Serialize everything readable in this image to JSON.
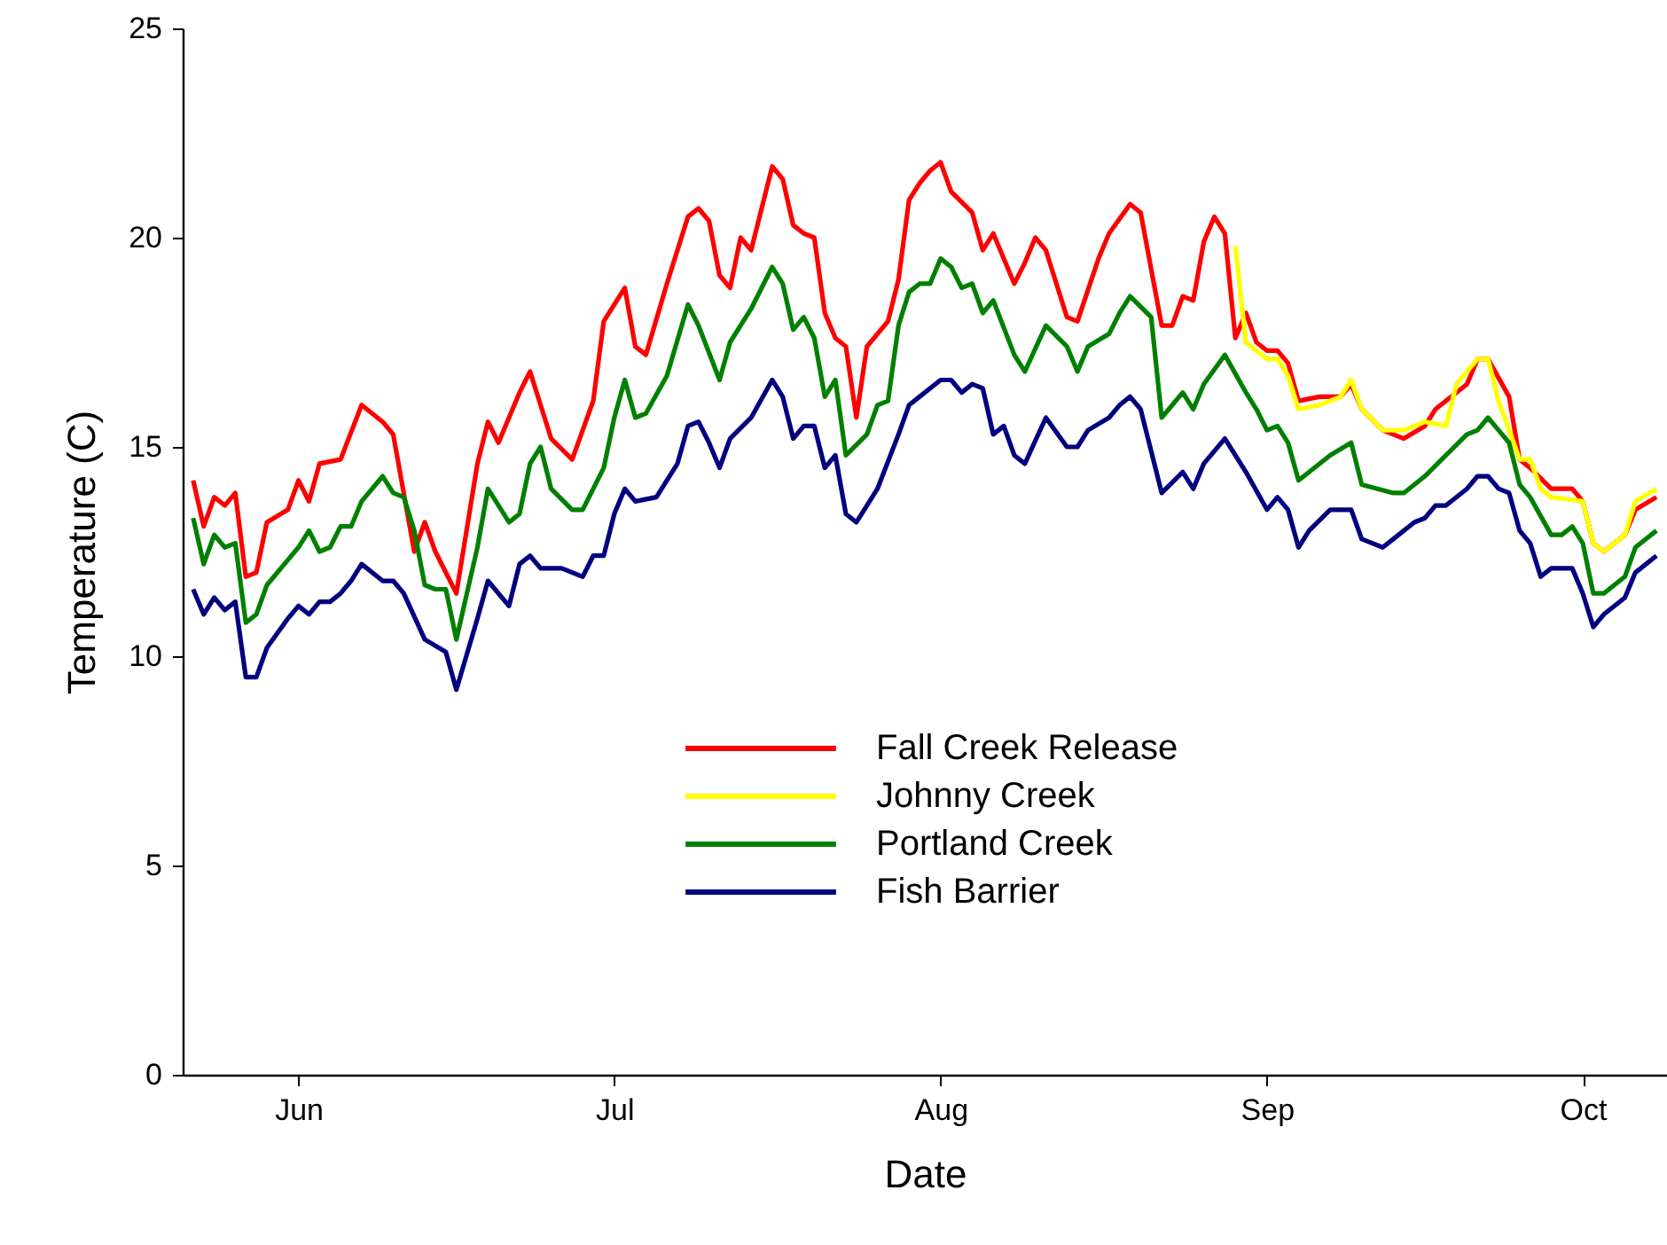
{
  "chart_data": {
    "type": "line",
    "xlabel": "Date",
    "ylabel": "Temperature (C)",
    "xlim": [
      "--05-21",
      "--10-09"
    ],
    "ylim": [
      0,
      25
    ],
    "yticks": [
      0,
      5,
      10,
      15,
      20,
      25
    ],
    "xticks": [
      {
        "value": "--06-01",
        "label": "Jun"
      },
      {
        "value": "--07-01",
        "label": "Jul"
      },
      {
        "value": "--08-01",
        "label": "Aug"
      },
      {
        "value": "--09-01",
        "label": "Sep"
      },
      {
        "value": "--10-01",
        "label": "Oct"
      }
    ],
    "legend": "bottom",
    "series": [
      {
        "name": "Fall Creek Release",
        "color": "#ff0000",
        "x": [
          "--05-22",
          "--05-23",
          "--05-24",
          "--05-25",
          "--05-26",
          "--05-27",
          "--05-28",
          "--05-29",
          "--05-31",
          "--06-01",
          "--06-02",
          "--06-03",
          "--06-05",
          "--06-07",
          "--06-09",
          "--06-10",
          "--06-11",
          "--06-12",
          "--06-13",
          "--06-14",
          "--06-16",
          "--06-18",
          "--06-19",
          "--06-20",
          "--06-22",
          "--06-23",
          "--06-25",
          "--06-27",
          "--06-29",
          "--06-30",
          "--07-02",
          "--07-03",
          "--07-04",
          "--07-06",
          "--07-08",
          "--07-09",
          "--07-10",
          "--07-11",
          "--07-12",
          "--07-13",
          "--07-14",
          "--07-16",
          "--07-17",
          "--07-18",
          "--07-19",
          "--07-20",
          "--07-21",
          "--07-22",
          "--07-23",
          "--07-24",
          "--07-25",
          "--07-27",
          "--07-28",
          "--07-29",
          "--07-30",
          "--07-31",
          "--08-01",
          "--08-02",
          "--08-04",
          "--08-05",
          "--08-06",
          "--08-08",
          "--08-09",
          "--08-10",
          "--08-11",
          "--08-13",
          "--08-14",
          "--08-16",
          "--08-17",
          "--08-19",
          "--08-20",
          "--08-22",
          "--08-23",
          "--08-24",
          "--08-25",
          "--08-26",
          "--08-27",
          "--08-28",
          "--08-29",
          "--08-30",
          "--08-31",
          "--09-01",
          "--09-02",
          "--09-03",
          "--09-04",
          "--09-06",
          "--09-08",
          "--09-09",
          "--09-10",
          "--09-12",
          "--09-14",
          "--09-16",
          "--09-17",
          "--09-20",
          "--09-21",
          "--09-22",
          "--09-24",
          "--09-25",
          "--09-26",
          "--09-28",
          "--09-30",
          "--10-01",
          "--10-02",
          "--10-03",
          "--10-05",
          "--10-06",
          "--10-08"
        ],
        "values": [
          14.2,
          13.1,
          13.8,
          13.6,
          13.9,
          11.9,
          12.0,
          13.2,
          13.5,
          14.2,
          13.7,
          14.6,
          14.7,
          16.0,
          15.6,
          15.3,
          13.9,
          12.5,
          13.2,
          12.5,
          11.5,
          14.6,
          15.6,
          15.1,
          16.3,
          16.8,
          15.2,
          14.7,
          16.1,
          18.0,
          18.8,
          17.4,
          17.2,
          18.9,
          20.5,
          20.7,
          20.4,
          19.1,
          18.8,
          20.0,
          19.7,
          21.7,
          21.4,
          20.3,
          20.1,
          20.0,
          18.2,
          17.6,
          17.4,
          15.7,
          17.4,
          18.0,
          19.0,
          20.9,
          21.3,
          21.6,
          21.8,
          21.1,
          20.6,
          19.7,
          20.1,
          18.9,
          19.4,
          20.0,
          19.7,
          18.1,
          18.0,
          19.5,
          20.1,
          20.8,
          20.6,
          17.9,
          17.9,
          18.6,
          18.5,
          19.9,
          20.5,
          20.1,
          17.6,
          18.2,
          17.5,
          17.3,
          17.3,
          17.0,
          16.1,
          16.2,
          16.2,
          16.5,
          15.9,
          15.4,
          15.2,
          15.5,
          15.9,
          16.5,
          17.1,
          17.1,
          16.2,
          14.7,
          14.5,
          14.0,
          14.0,
          13.7,
          12.7,
          12.5,
          12.9,
          13.5,
          13.8
        ]
      },
      {
        "name": "Johnny Creek",
        "color": "#ffff00",
        "x": [
          "--08-29",
          "--08-30",
          "--09-01",
          "--09-02",
          "--09-03",
          "--09-04",
          "--09-06",
          "--09-08",
          "--09-09",
          "--09-10",
          "--09-12",
          "--09-14",
          "--09-16",
          "--09-18",
          "--09-19",
          "--09-21",
          "--09-22",
          "--09-23",
          "--09-25",
          "--09-26",
          "--09-27",
          "--09-28",
          "--10-01",
          "--10-02",
          "--10-03",
          "--10-05",
          "--10-06",
          "--10-08"
        ],
        "values": [
          19.8,
          17.5,
          17.1,
          17.1,
          16.7,
          15.9,
          16.0,
          16.2,
          16.6,
          15.9,
          15.4,
          15.4,
          15.6,
          15.5,
          16.5,
          17.1,
          17.1,
          16.1,
          14.7,
          14.7,
          14.0,
          13.8,
          13.7,
          12.7,
          12.5,
          12.9,
          13.7,
          14.0
        ]
      },
      {
        "name": "Portland Creek",
        "color": "#008000",
        "x": [
          "--05-22",
          "--05-23",
          "--05-24",
          "--05-25",
          "--05-26",
          "--05-27",
          "--05-28",
          "--05-29",
          "--05-31",
          "--06-01",
          "--06-02",
          "--06-03",
          "--06-04",
          "--06-05",
          "--06-06",
          "--06-07",
          "--06-09",
          "--06-10",
          "--06-11",
          "--06-12",
          "--06-13",
          "--06-14",
          "--06-15",
          "--06-16",
          "--06-18",
          "--06-19",
          "--06-21",
          "--06-22",
          "--06-23",
          "--06-24",
          "--06-25",
          "--06-27",
          "--06-28",
          "--06-30",
          "--07-01",
          "--07-02",
          "--07-03",
          "--07-04",
          "--07-06",
          "--07-08",
          "--07-09",
          "--07-11",
          "--07-12",
          "--07-14",
          "--07-16",
          "--07-17",
          "--07-18",
          "--07-19",
          "--07-20",
          "--07-21",
          "--07-22",
          "--07-23",
          "--07-25",
          "--07-26",
          "--07-27",
          "--07-28",
          "--07-29",
          "--07-30",
          "--07-31",
          "--08-01",
          "--08-02",
          "--08-03",
          "--08-04",
          "--08-05",
          "--08-06",
          "--08-08",
          "--08-09",
          "--08-11",
          "--08-13",
          "--08-14",
          "--08-15",
          "--08-17",
          "--08-18",
          "--08-19",
          "--08-21",
          "--08-22",
          "--08-24",
          "--08-25",
          "--08-26",
          "--08-28",
          "--08-30",
          "--08-31",
          "--09-01",
          "--09-02",
          "--09-03",
          "--09-04",
          "--09-07",
          "--09-09",
          "--09-10",
          "--09-13",
          "--09-14",
          "--09-16",
          "--09-18",
          "--09-20",
          "--09-21",
          "--09-22",
          "--09-23",
          "--09-24",
          "--09-25",
          "--09-26",
          "--09-28",
          "--09-29",
          "--09-30",
          "--10-01",
          "--10-02",
          "--10-03",
          "--10-05",
          "--10-06",
          "--10-08"
        ],
        "values": [
          13.3,
          12.2,
          12.9,
          12.6,
          12.7,
          10.8,
          11.0,
          11.7,
          12.3,
          12.6,
          13.0,
          12.5,
          12.6,
          13.1,
          13.1,
          13.7,
          14.3,
          13.9,
          13.8,
          13.0,
          11.7,
          11.6,
          11.6,
          10.4,
          12.6,
          14.0,
          13.2,
          13.4,
          14.6,
          15.0,
          14.0,
          13.5,
          13.5,
          14.5,
          15.7,
          16.6,
          15.7,
          15.8,
          16.7,
          18.4,
          17.9,
          16.6,
          17.5,
          18.3,
          19.3,
          18.9,
          17.8,
          18.1,
          17.6,
          16.2,
          16.6,
          14.8,
          15.3,
          16.0,
          16.1,
          17.9,
          18.7,
          18.9,
          18.9,
          19.5,
          19.3,
          18.8,
          18.9,
          18.2,
          18.5,
          17.2,
          16.8,
          17.9,
          17.4,
          16.8,
          17.4,
          17.7,
          18.2,
          18.6,
          18.1,
          15.7,
          16.3,
          15.9,
          16.5,
          17.2,
          16.3,
          15.9,
          15.4,
          15.5,
          15.1,
          14.2,
          14.8,
          15.1,
          14.1,
          13.9,
          13.9,
          14.3,
          14.8,
          15.3,
          15.4,
          15.7,
          15.4,
          15.1,
          14.1,
          13.8,
          12.9,
          12.9,
          13.1,
          12.7,
          11.5,
          11.5,
          11.9,
          12.6,
          13.0
        ]
      },
      {
        "name": "Fish Barrier",
        "color": "#000080",
        "x": [
          "--05-22",
          "--05-23",
          "--05-24",
          "--05-25",
          "--05-26",
          "--05-27",
          "--05-28",
          "--05-29",
          "--05-31",
          "--06-01",
          "--06-02",
          "--06-03",
          "--06-04",
          "--06-05",
          "--06-06",
          "--06-07",
          "--06-09",
          "--06-10",
          "--06-11",
          "--06-13",
          "--06-15",
          "--06-16",
          "--06-18",
          "--06-19",
          "--06-21",
          "--06-22",
          "--06-23",
          "--06-24",
          "--06-26",
          "--06-28",
          "--06-29",
          "--06-30",
          "--07-01",
          "--07-02",
          "--07-03",
          "--07-05",
          "--07-07",
          "--07-08",
          "--07-09",
          "--07-10",
          "--07-11",
          "--07-12",
          "--07-14",
          "--07-16",
          "--07-17",
          "--07-18",
          "--07-19",
          "--07-20",
          "--07-21",
          "--07-22",
          "--07-23",
          "--07-24",
          "--07-25",
          "--07-26",
          "--07-28",
          "--07-29",
          "--07-30",
          "--08-01",
          "--08-02",
          "--08-03",
          "--08-04",
          "--08-05",
          "--08-06",
          "--08-07",
          "--08-08",
          "--08-09",
          "--08-11",
          "--08-13",
          "--08-14",
          "--08-15",
          "--08-17",
          "--08-18",
          "--08-19",
          "--08-20",
          "--08-22",
          "--08-24",
          "--08-25",
          "--08-26",
          "--08-28",
          "--08-30",
          "--09-01",
          "--09-02",
          "--09-03",
          "--09-04",
          "--09-05",
          "--09-07",
          "--09-09",
          "--09-10",
          "--09-11",
          "--09-12",
          "--09-13",
          "--09-15",
          "--09-16",
          "--09-17",
          "--09-18",
          "--09-20",
          "--09-21",
          "--09-22",
          "--09-23",
          "--09-24",
          "--09-25",
          "--09-26",
          "--09-27",
          "--09-28",
          "--09-30",
          "--10-01",
          "--10-02",
          "--10-03",
          "--10-05",
          "--10-06",
          "--10-08"
        ],
        "values": [
          11.6,
          11.0,
          11.4,
          11.1,
          11.3,
          9.5,
          9.5,
          10.2,
          10.9,
          11.2,
          11.0,
          11.3,
          11.3,
          11.5,
          11.8,
          12.2,
          11.8,
          11.8,
          11.5,
          10.4,
          10.1,
          9.2,
          10.9,
          11.8,
          11.2,
          12.2,
          12.4,
          12.1,
          12.1,
          11.9,
          12.4,
          12.4,
          13.4,
          14.0,
          13.7,
          13.8,
          14.6,
          15.5,
          15.6,
          15.1,
          14.5,
          15.2,
          15.7,
          16.6,
          16.2,
          15.2,
          15.5,
          15.5,
          14.5,
          14.8,
          13.4,
          13.2,
          13.6,
          14.0,
          15.3,
          16.0,
          16.2,
          16.6,
          16.6,
          16.3,
          16.5,
          16.4,
          15.3,
          15.5,
          14.8,
          14.6,
          15.7,
          15.0,
          15.0,
          15.4,
          15.7,
          16.0,
          16.2,
          15.9,
          13.9,
          14.4,
          14.0,
          14.6,
          15.2,
          14.4,
          13.5,
          13.8,
          13.5,
          12.6,
          13.0,
          13.5,
          13.5,
          12.8,
          12.7,
          12.6,
          12.8,
          13.2,
          13.3,
          13.6,
          13.6,
          14.0,
          14.3,
          14.3,
          14.0,
          13.9,
          13.0,
          12.7,
          11.9,
          12.1,
          12.1,
          11.5,
          10.7,
          11.0,
          11.4,
          12.0,
          12.4
        ]
      }
    ]
  }
}
